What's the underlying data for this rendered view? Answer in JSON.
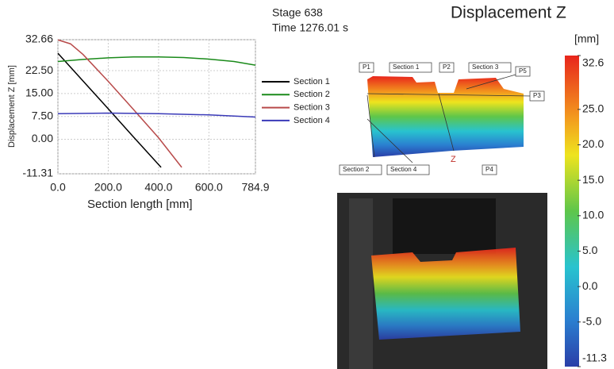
{
  "header": {
    "stage": "Stage 638",
    "time": "Time  1276.01 s",
    "title": "Displacement Z"
  },
  "chart_data": {
    "type": "line",
    "xlabel": "Section length [mm]",
    "ylabel": "Displacement Z [mm]",
    "xlim": [
      0,
      784.9
    ],
    "ylim": [
      -11.31,
      32.66
    ],
    "xticks": [
      {
        "value": 0,
        "label": "0.0"
      },
      {
        "value": 200,
        "label": "200.0"
      },
      {
        "value": 400,
        "label": "400.0"
      },
      {
        "value": 600,
        "label": "600.0"
      },
      784.9
    ],
    "yticks": [
      32.66,
      {
        "value": 22.5,
        "label": "22.50"
      },
      {
        "value": 15,
        "label": "15.00"
      },
      {
        "value": 7.5,
        "label": "7.50"
      },
      {
        "value": 0,
        "label": "0.00"
      },
      -11.31
    ],
    "grid": true,
    "legend": "right",
    "series": [
      {
        "name": "Section 1",
        "color": "#000000",
        "x": [
          0,
          100,
          200,
          300,
          410
        ],
        "values": [
          28.2,
          19.1,
          10.0,
          0.8,
          -9.2
        ]
      },
      {
        "name": "Section 2",
        "color": "#1a8a1a",
        "x": [
          0,
          100,
          200,
          300,
          400,
          500,
          600,
          700,
          784.9
        ],
        "values": [
          25.5,
          26.2,
          26.7,
          27.0,
          27.0,
          26.8,
          26.3,
          25.5,
          24.3
        ]
      },
      {
        "name": "Section 3",
        "color": "#b84a4a",
        "x": [
          0,
          50,
          100,
          200,
          300,
          400,
          492
        ],
        "values": [
          32.6,
          31.3,
          27.8,
          19.0,
          9.8,
          0.5,
          -9.2
        ]
      },
      {
        "name": "Section 4",
        "color": "#3a3ab8",
        "x": [
          0,
          200,
          400,
          600,
          784.9
        ],
        "values": [
          8.4,
          8.6,
          8.4,
          8.0,
          7.3
        ]
      }
    ]
  },
  "colorbar": {
    "label": "[mm]",
    "lim": [
      -11.3,
      32.6
    ],
    "ticks": [
      32.6,
      {
        "value": 25,
        "label": "25.0"
      },
      {
        "value": 20,
        "label": "20.0"
      },
      {
        "value": 15,
        "label": "15.0"
      },
      {
        "value": 10,
        "label": "10.0"
      },
      {
        "value": 5,
        "label": "5.0"
      },
      {
        "value": 0,
        "label": "0.0"
      },
      {
        "value": -5,
        "label": "-5.0"
      },
      -11.3
    ]
  },
  "diagram": {
    "labels": [
      "P1",
      "Section 1",
      "P2",
      "Section 3",
      "P5",
      "P3",
      "Section 2",
      "Section 4",
      "P4"
    ],
    "axis": "Z"
  }
}
